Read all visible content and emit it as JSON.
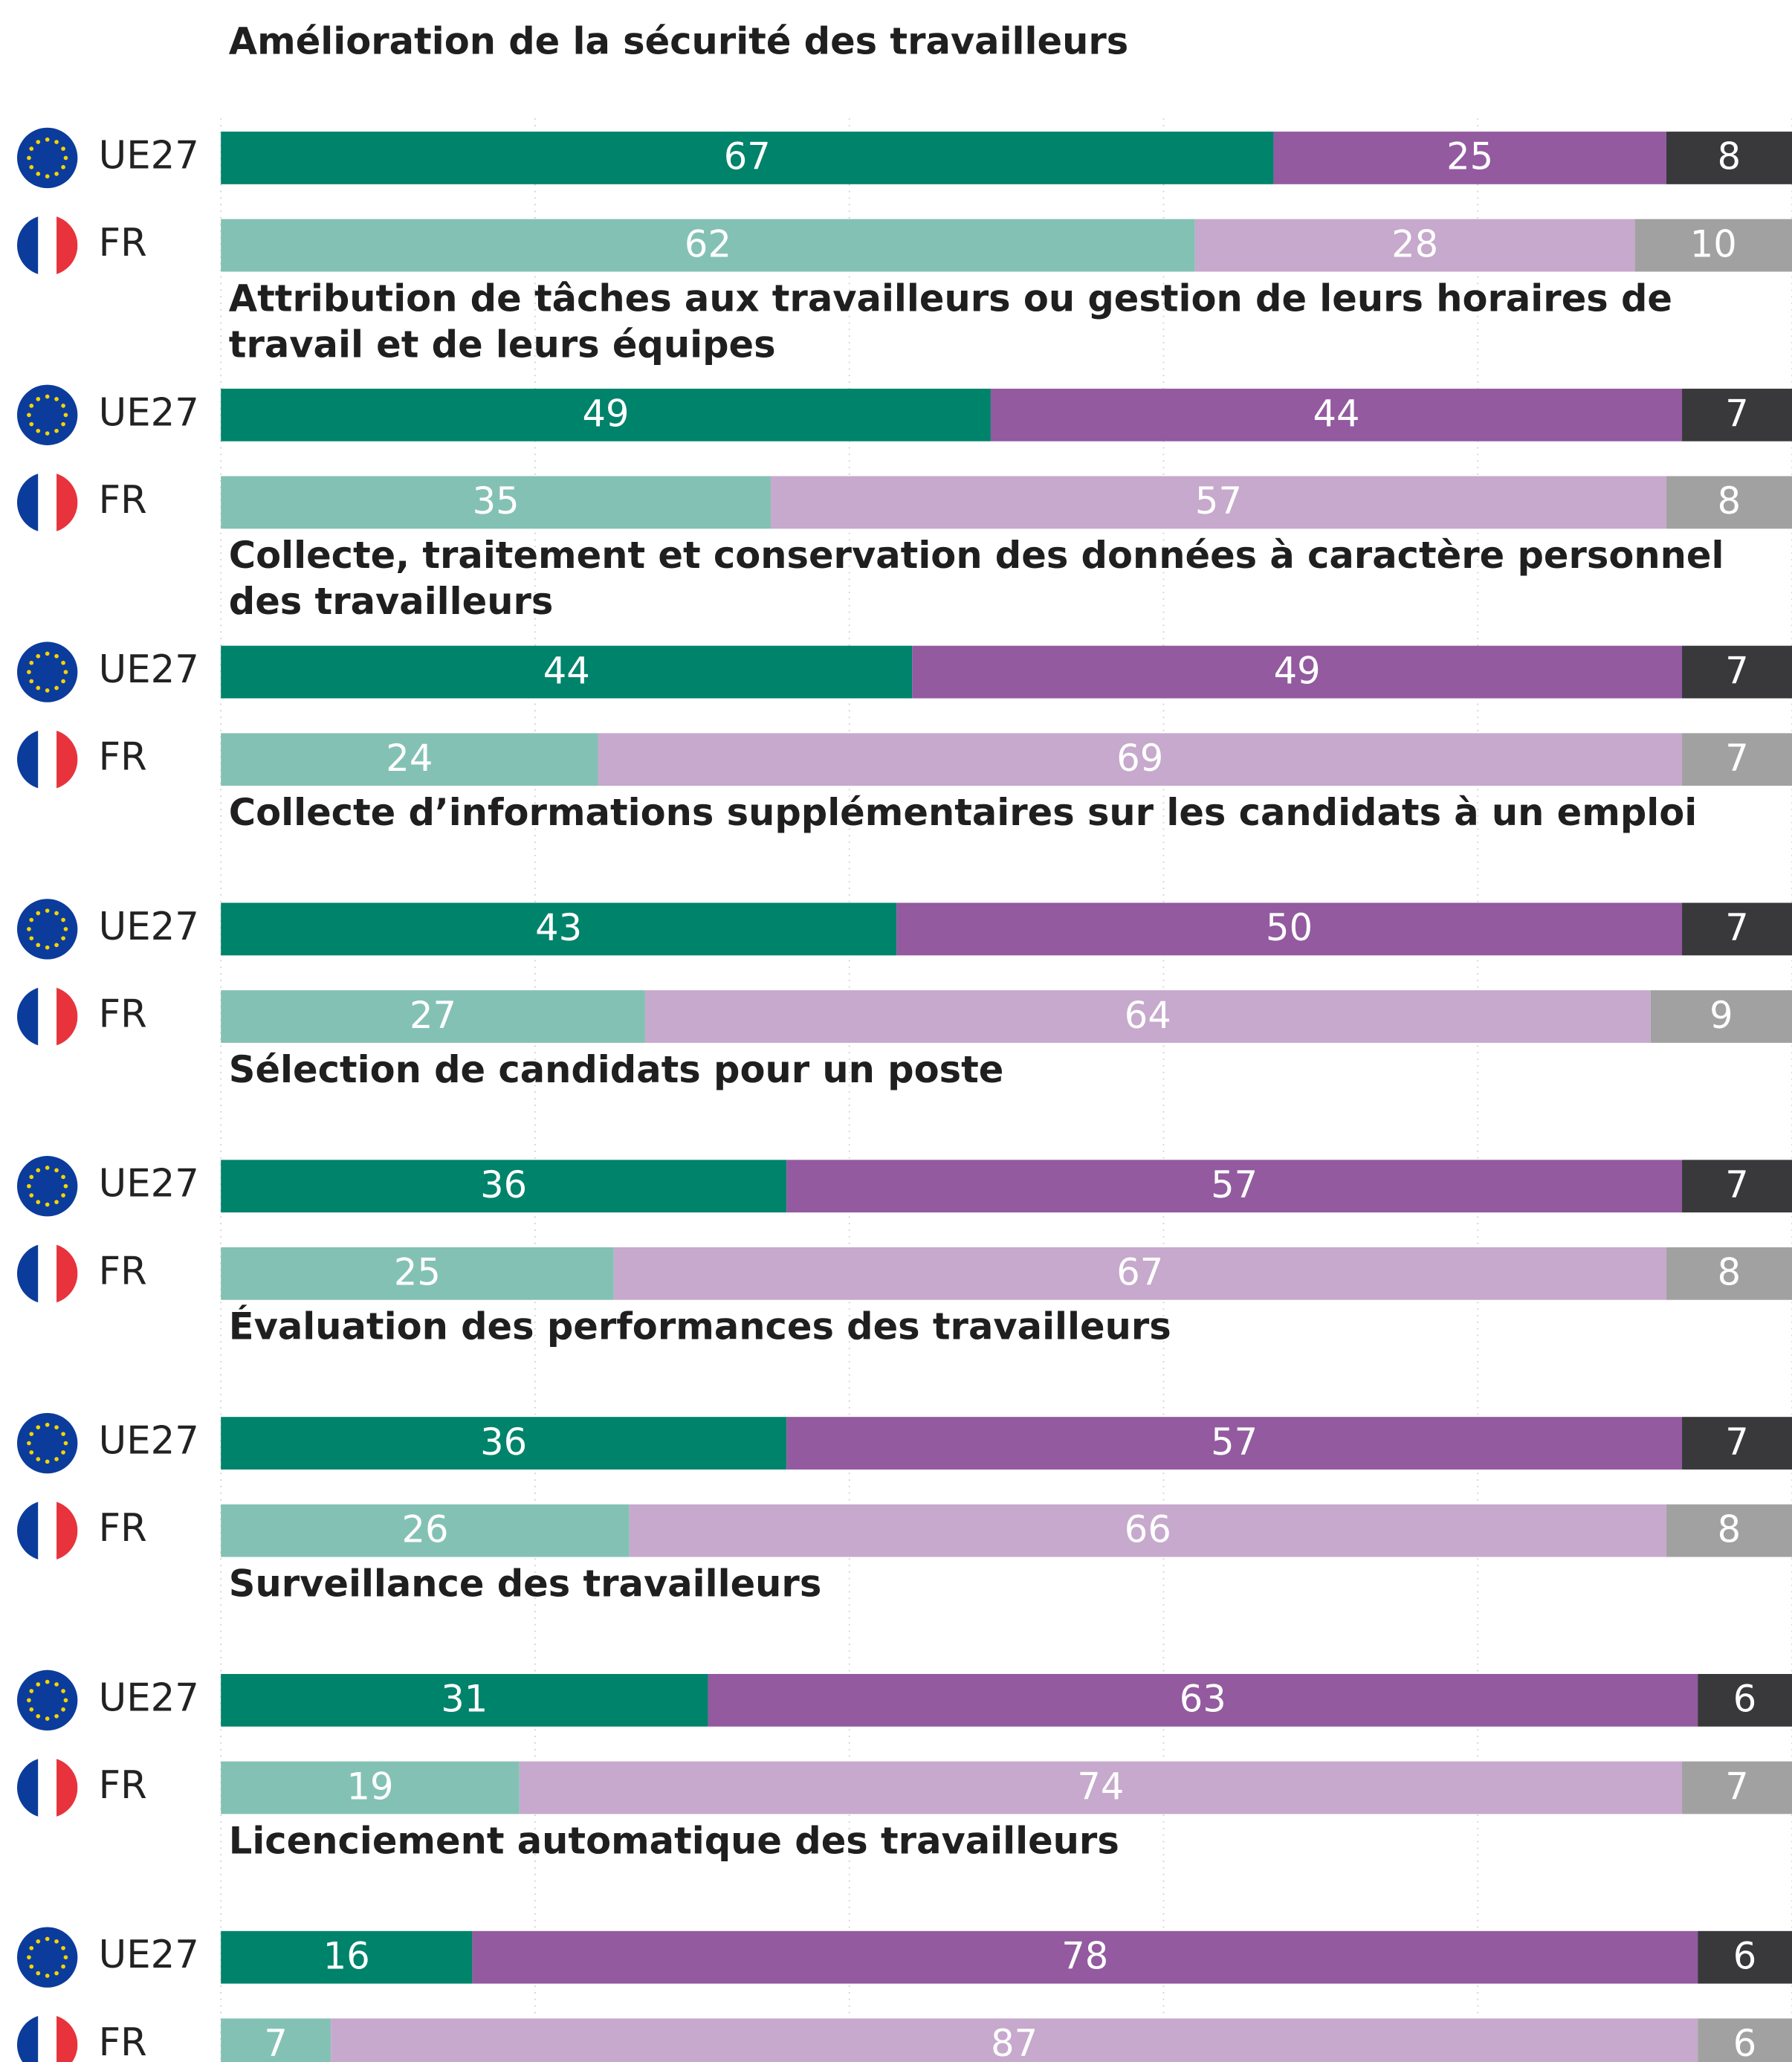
{
  "chart_data": {
    "type": "stacked-bar-horizontal",
    "xlim": [
      0,
      100
    ],
    "xticks": [
      0,
      20,
      40,
      60,
      80,
      100
    ],
    "grid": true,
    "row_labels": [
      "UE27",
      "FR"
    ],
    "row_colors": [
      [
        "#00836b",
        "#935aa0",
        "#39393b"
      ],
      [
        "#84c1b5",
        "#c6a9cc",
        "#a1a1a1"
      ]
    ],
    "groups": [
      {
        "title": "Amélioration de la sécurité des travailleurs",
        "values": [
          [
            67,
            25,
            8
          ],
          [
            62,
            28,
            10
          ]
        ]
      },
      {
        "title": "Attribution de tâches aux travailleurs ou gestion de leurs horaires de travail et de leurs équipes",
        "values": [
          [
            49,
            44,
            7
          ],
          [
            35,
            57,
            8
          ]
        ]
      },
      {
        "title": "Collecte, traitement et conservation des données à caractère personnel des travailleurs",
        "values": [
          [
            44,
            49,
            7
          ],
          [
            24,
            69,
            7
          ]
        ]
      },
      {
        "title": "Collecte d’informations supplémentaires sur les candidats à un emploi",
        "values": [
          [
            43,
            50,
            7
          ],
          [
            27,
            64,
            9
          ]
        ]
      },
      {
        "title": "Sélection de candidats pour un poste",
        "values": [
          [
            36,
            57,
            7
          ],
          [
            25,
            67,
            8
          ]
        ]
      },
      {
        "title": "Évaluation des performances des travailleurs",
        "values": [
          [
            36,
            57,
            7
          ],
          [
            26,
            66,
            8
          ]
        ]
      },
      {
        "title": "Surveillance des travailleurs",
        "values": [
          [
            31,
            63,
            6
          ],
          [
            19,
            74,
            7
          ]
        ]
      },
      {
        "title": "Licenciement automatique des travailleurs",
        "values": [
          [
            16,
            78,
            6
          ],
          [
            7,
            87,
            6
          ]
        ]
      }
    ]
  }
}
